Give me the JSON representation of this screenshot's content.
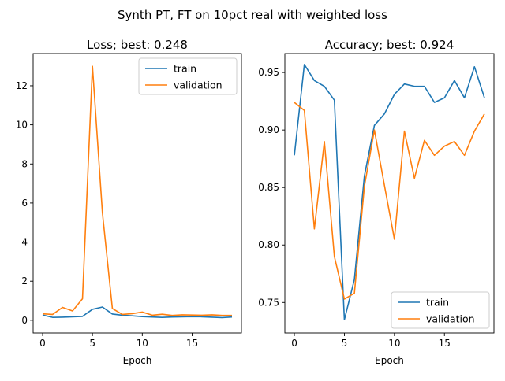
{
  "suptitle": "Synth PT, FT on 10pct real with weighted loss",
  "colors": {
    "train": "#1f77b4",
    "validation": "#ff7f0e"
  },
  "chart_data": [
    {
      "type": "line",
      "title": "Loss; best: 0.248",
      "xlabel": "Epoch",
      "ylabel": "",
      "xlim": [
        -0.95,
        19.95
      ],
      "ylim": [
        -0.65,
        13.65
      ],
      "xticks": [
        0,
        5,
        10,
        15
      ],
      "yticks": [
        0,
        2,
        4,
        6,
        8,
        10,
        12
      ],
      "ytick_labels": [
        "0",
        "2",
        "4",
        "6",
        "8",
        "10",
        "12"
      ],
      "legend": "top-right",
      "grid": false,
      "x": [
        0,
        1,
        2,
        3,
        4,
        5,
        6,
        7,
        8,
        9,
        10,
        11,
        12,
        13,
        14,
        15,
        16,
        17,
        18,
        19
      ],
      "series": [
        {
          "name": "train",
          "color": "#1f77b4",
          "values": [
            0.27,
            0.15,
            0.16,
            0.18,
            0.2,
            0.56,
            0.68,
            0.32,
            0.26,
            0.23,
            0.19,
            0.17,
            0.15,
            0.17,
            0.18,
            0.19,
            0.18,
            0.16,
            0.14,
            0.17
          ]
        },
        {
          "name": "validation",
          "color": "#ff7f0e",
          "values": [
            0.33,
            0.3,
            0.66,
            0.48,
            1.1,
            13.0,
            5.5,
            0.6,
            0.3,
            0.34,
            0.42,
            0.26,
            0.31,
            0.25,
            0.28,
            0.27,
            0.26,
            0.28,
            0.25,
            0.25
          ]
        }
      ]
    },
    {
      "type": "line",
      "title": "Accuracy; best: 0.924",
      "xlabel": "Epoch",
      "ylabel": "",
      "xlim": [
        -0.95,
        19.95
      ],
      "ylim": [
        0.7235,
        0.9665
      ],
      "xticks": [
        0,
        5,
        10,
        15
      ],
      "yticks": [
        0.75,
        0.8,
        0.85,
        0.9,
        0.95
      ],
      "ytick_labels": [
        "0.75",
        "0.80",
        "0.85",
        "0.90",
        "0.95"
      ],
      "legend": "bottom-right",
      "grid": false,
      "x": [
        0,
        1,
        2,
        3,
        4,
        5,
        6,
        7,
        8,
        9,
        10,
        11,
        12,
        13,
        14,
        15,
        16,
        17,
        18,
        19
      ],
      "series": [
        {
          "name": "train",
          "color": "#1f77b4",
          "values": [
            0.878,
            0.957,
            0.943,
            0.938,
            0.926,
            0.735,
            0.77,
            0.86,
            0.904,
            0.914,
            0.931,
            0.94,
            0.938,
            0.938,
            0.924,
            0.928,
            0.943,
            0.928,
            0.955,
            0.928
          ]
        },
        {
          "name": "validation",
          "color": "#ff7f0e",
          "values": [
            0.924,
            0.917,
            0.814,
            0.89,
            0.79,
            0.753,
            0.758,
            0.851,
            0.9,
            0.852,
            0.805,
            0.899,
            0.858,
            0.891,
            0.878,
            0.886,
            0.89,
            0.878,
            0.899,
            0.914
          ]
        }
      ]
    }
  ]
}
